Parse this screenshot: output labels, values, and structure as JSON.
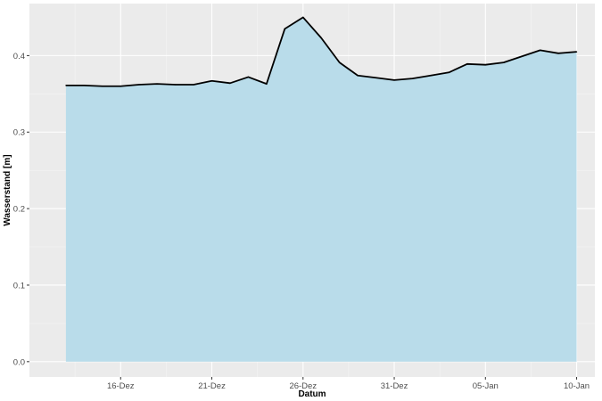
{
  "chart_data": {
    "type": "area",
    "title": "",
    "xlabel": "Datum",
    "ylabel": "Wasserstand [m]",
    "x": [
      "2023-12-13",
      "2023-12-14",
      "2023-12-15",
      "2023-12-16",
      "2023-12-17",
      "2023-12-18",
      "2023-12-19",
      "2023-12-20",
      "2023-12-21",
      "2023-12-22",
      "2023-12-23",
      "2023-12-24",
      "2023-12-25",
      "2023-12-26",
      "2023-12-27",
      "2023-12-28",
      "2023-12-29",
      "2023-12-30",
      "2023-12-31",
      "2024-01-01",
      "2024-01-02",
      "2024-01-03",
      "2024-01-04",
      "2024-01-05",
      "2024-01-06",
      "2024-01-07",
      "2024-01-08",
      "2024-01-09",
      "2024-01-10"
    ],
    "series": [
      {
        "values": [
          0.361,
          0.361,
          0.36,
          0.36,
          0.362,
          0.363,
          0.362,
          0.362,
          0.367,
          0.364,
          0.372,
          0.363,
          0.435,
          0.45,
          0.423,
          0.391,
          0.374,
          0.371,
          0.368,
          0.37,
          0.374,
          0.378,
          0.389,
          0.388,
          0.391,
          0.399,
          0.407,
          0.403,
          0.405
        ]
      }
    ],
    "x_ticks": [
      "16-Dez",
      "21-Dez",
      "26-Dez",
      "31-Dez",
      "05-Jan",
      "10-Jan"
    ],
    "y_ticks": [
      "0.0",
      "0.1",
      "0.2",
      "0.3",
      "0.4"
    ],
    "ylim": [
      -0.02,
      0.468
    ],
    "xlim": [
      "2023-12-11",
      "2024-01-11"
    ],
    "grid": true,
    "colors": {
      "panel": "#ebebeb",
      "grid_major": "#ffffff",
      "grid_minor": "#f5f5f5",
      "area": "#b9dcea",
      "line": "#000000"
    }
  }
}
